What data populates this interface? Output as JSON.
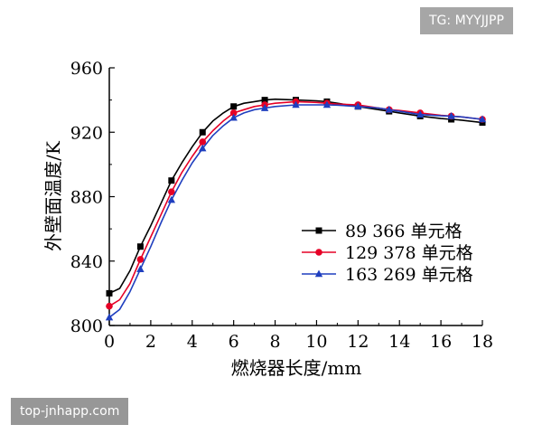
{
  "watermarks": {
    "top_right": "TG: MYYJJPP",
    "bottom_left": "top-jnhapp.com"
  },
  "chart_data": {
    "type": "line",
    "xlabel": "燃烧器长度/mm",
    "ylabel": "外壁面温度/K",
    "xlim": [
      0,
      18
    ],
    "ylim": [
      800,
      960
    ],
    "xticks": [
      0,
      2,
      4,
      6,
      8,
      10,
      12,
      14,
      16,
      18
    ],
    "yticks": [
      800,
      840,
      880,
      920,
      960
    ],
    "grid": false,
    "legend_position": "center-right",
    "series": [
      {
        "name": "89 366 单元格",
        "color": "#000000",
        "marker": "square",
        "x": [
          0,
          1.5,
          3,
          4.5,
          6,
          7.5,
          9,
          10.5,
          12,
          13.5,
          15,
          16.5,
          18
        ],
        "y": [
          820,
          849,
          890,
          920,
          936,
          940,
          940,
          939,
          936,
          933,
          930,
          928,
          926
        ],
        "curve_x": [
          0,
          0.5,
          1,
          1.5,
          2,
          2.5,
          3,
          3.5,
          4,
          4.5,
          5,
          5.5,
          6,
          6.5,
          7,
          7.5,
          8,
          9,
          10,
          10.5,
          11,
          12,
          13,
          13.5,
          14,
          15,
          16,
          16.5,
          17,
          18
        ],
        "curve_y": [
          820,
          823,
          834,
          849,
          862,
          876,
          890,
          901,
          911,
          920,
          927,
          932,
          936,
          938,
          939,
          940,
          940.5,
          940,
          939.5,
          939,
          938,
          936,
          934,
          933,
          932,
          930,
          928.5,
          928,
          927.5,
          926
        ]
      },
      {
        "name": "129 378 单元格",
        "color": "#e60026",
        "marker": "circle",
        "x": [
          0,
          1.5,
          3,
          4.5,
          6,
          7.5,
          9,
          10.5,
          12,
          13.5,
          15,
          16.5,
          18
        ],
        "y": [
          812,
          841,
          883,
          914,
          932,
          937,
          939,
          938,
          937,
          934,
          932,
          930,
          928
        ],
        "curve_x": [
          0,
          0.5,
          1,
          1.5,
          2,
          2.5,
          3,
          3.5,
          4,
          4.5,
          5,
          5.5,
          6,
          6.5,
          7,
          7.5,
          8,
          9,
          10,
          10.5,
          11,
          12,
          13,
          13.5,
          14,
          15,
          16,
          16.5,
          17,
          18
        ],
        "curve_y": [
          812,
          816,
          826,
          841,
          855,
          869,
          883,
          895,
          905,
          914,
          921,
          927,
          932,
          934,
          936,
          937,
          938,
          939,
          938.5,
          938,
          937.5,
          937,
          935,
          934,
          933.5,
          932,
          930.5,
          930,
          929.5,
          928
        ]
      },
      {
        "name": "163 269 单元格",
        "color": "#1f3fbf",
        "marker": "triangle",
        "x": [
          0,
          1.5,
          3,
          4.5,
          6,
          7.5,
          9,
          10.5,
          12,
          13.5,
          15,
          16.5,
          18
        ],
        "y": [
          805,
          835,
          878,
          910,
          929,
          935,
          937,
          937,
          936,
          934,
          931,
          930,
          928
        ],
        "curve_x": [
          0,
          0.5,
          1,
          1.5,
          2,
          2.5,
          3,
          3.5,
          4,
          4.5,
          5,
          5.5,
          6,
          6.5,
          7,
          7.5,
          8,
          9,
          10,
          10.5,
          11,
          12,
          13,
          13.5,
          14,
          15,
          16,
          16.5,
          17,
          18
        ],
        "curve_y": [
          805,
          810,
          821,
          835,
          849,
          864,
          878,
          890,
          901,
          910,
          918,
          924,
          929,
          932,
          934,
          935,
          936,
          937,
          937,
          937,
          936.8,
          936,
          935,
          934,
          933,
          931,
          930.2,
          930,
          929.5,
          928
        ]
      }
    ]
  }
}
